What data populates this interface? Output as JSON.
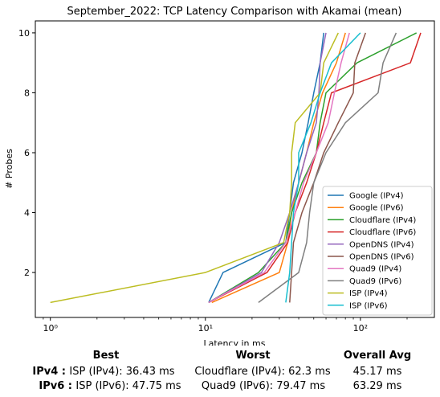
{
  "chart_data": {
    "type": "line",
    "title": "September_2022: TCP Latency Comparison with Akamai (mean)",
    "xlabel": "Latency in ms",
    "ylabel": "# Probes",
    "x_scale": "log",
    "xlim": [
      0.8,
      300
    ],
    "ylim": [
      0.5,
      10.4
    ],
    "x_ticks": [
      {
        "value": 1,
        "label": "10⁰"
      },
      {
        "value": 10,
        "label": "10¹"
      },
      {
        "value": 100,
        "label": "10²"
      }
    ],
    "y_ticks": [
      2,
      4,
      6,
      8,
      10
    ],
    "legend_position": "lower-right",
    "series": [
      {
        "name": "Google (IPv4)",
        "color": "#1f77b4",
        "x": [
          10.5,
          13,
          33,
          35,
          37,
          42,
          46,
          50,
          55,
          58
        ],
        "y": [
          1,
          2,
          3,
          4,
          5,
          6,
          7,
          8,
          9,
          10
        ]
      },
      {
        "name": "Google (IPv6)",
        "color": "#ff7f0e",
        "x": [
          11,
          30,
          34,
          36,
          40,
          45,
          50,
          57,
          70,
          80
        ],
        "y": [
          1,
          2,
          3,
          4,
          5,
          6,
          7,
          8,
          9,
          10
        ]
      },
      {
        "name": "Cloudflare (IPv4)",
        "color": "#2ca02c",
        "x": [
          10.5,
          22,
          33,
          36,
          42,
          52,
          55,
          60,
          95,
          230
        ],
        "y": [
          1,
          2,
          3,
          4,
          5,
          6,
          7,
          8,
          9,
          10
        ]
      },
      {
        "name": "Cloudflare (IPv6)",
        "color": "#d62728",
        "x": [
          10.5,
          25,
          34,
          38,
          45,
          52,
          58,
          65,
          210,
          245
        ],
        "y": [
          1,
          2,
          3,
          4,
          5,
          6,
          7,
          8,
          9,
          10
        ]
      },
      {
        "name": "OpenDNS (IPv4)",
        "color": "#9467bd",
        "x": [
          10.5,
          23,
          30,
          35,
          40,
          45,
          52,
          54,
          55,
          60
        ],
        "y": [
          1,
          2,
          3,
          4,
          5,
          6,
          7,
          8,
          9,
          10
        ]
      },
      {
        "name": "OpenDNS (IPv6)",
        "color": "#8c564b",
        "x": [
          35,
          36,
          37,
          42,
          50,
          58,
          72,
          90,
          92,
          108
        ],
        "y": [
          1,
          2,
          3,
          4,
          5,
          6,
          7,
          8,
          9,
          10
        ]
      },
      {
        "name": "Quad9 (IPv4)",
        "color": "#e377c2",
        "x": [
          10.5,
          24,
          33,
          38,
          43,
          52,
          62,
          68,
          75,
          85
        ],
        "y": [
          1,
          2,
          3,
          4,
          5,
          6,
          7,
          8,
          9,
          10
        ]
      },
      {
        "name": "Quad9 (IPv6)",
        "color": "#7f7f7f",
        "x": [
          22,
          40,
          45,
          47,
          50,
          60,
          80,
          130,
          140,
          170
        ],
        "y": [
          1,
          2,
          3,
          4,
          5,
          6,
          7,
          8,
          9,
          10
        ]
      },
      {
        "name": "ISP (IPv4)",
        "color": "#bcbd22",
        "x": [
          1,
          10,
          32,
          35,
          36,
          36,
          38,
          55,
          58,
          72
        ],
        "y": [
          1,
          2,
          3,
          4,
          5,
          6,
          7,
          8,
          9,
          10
        ]
      },
      {
        "name": "ISP (IPv6)",
        "color": "#17becf",
        "x": [
          33,
          35,
          36,
          37,
          40,
          40,
          48,
          55,
          65,
          100
        ],
        "y": [
          1,
          2,
          3,
          4,
          5,
          6,
          7,
          8,
          9,
          10
        ]
      }
    ]
  },
  "stats": {
    "headers": {
      "best": "Best",
      "worst": "Worst",
      "avg": "Overall Avg"
    },
    "ipv4": {
      "label": "IPv4 :",
      "best": "ISP (IPv4): 36.43 ms",
      "worst": "Cloudflare (IPv4): 62.3 ms",
      "avg": "45.17 ms"
    },
    "ipv6": {
      "label": "IPv6 :",
      "best": "ISP (IPv6): 47.75 ms",
      "worst": "Quad9 (IPv6): 79.47 ms",
      "avg": "63.29 ms"
    }
  }
}
